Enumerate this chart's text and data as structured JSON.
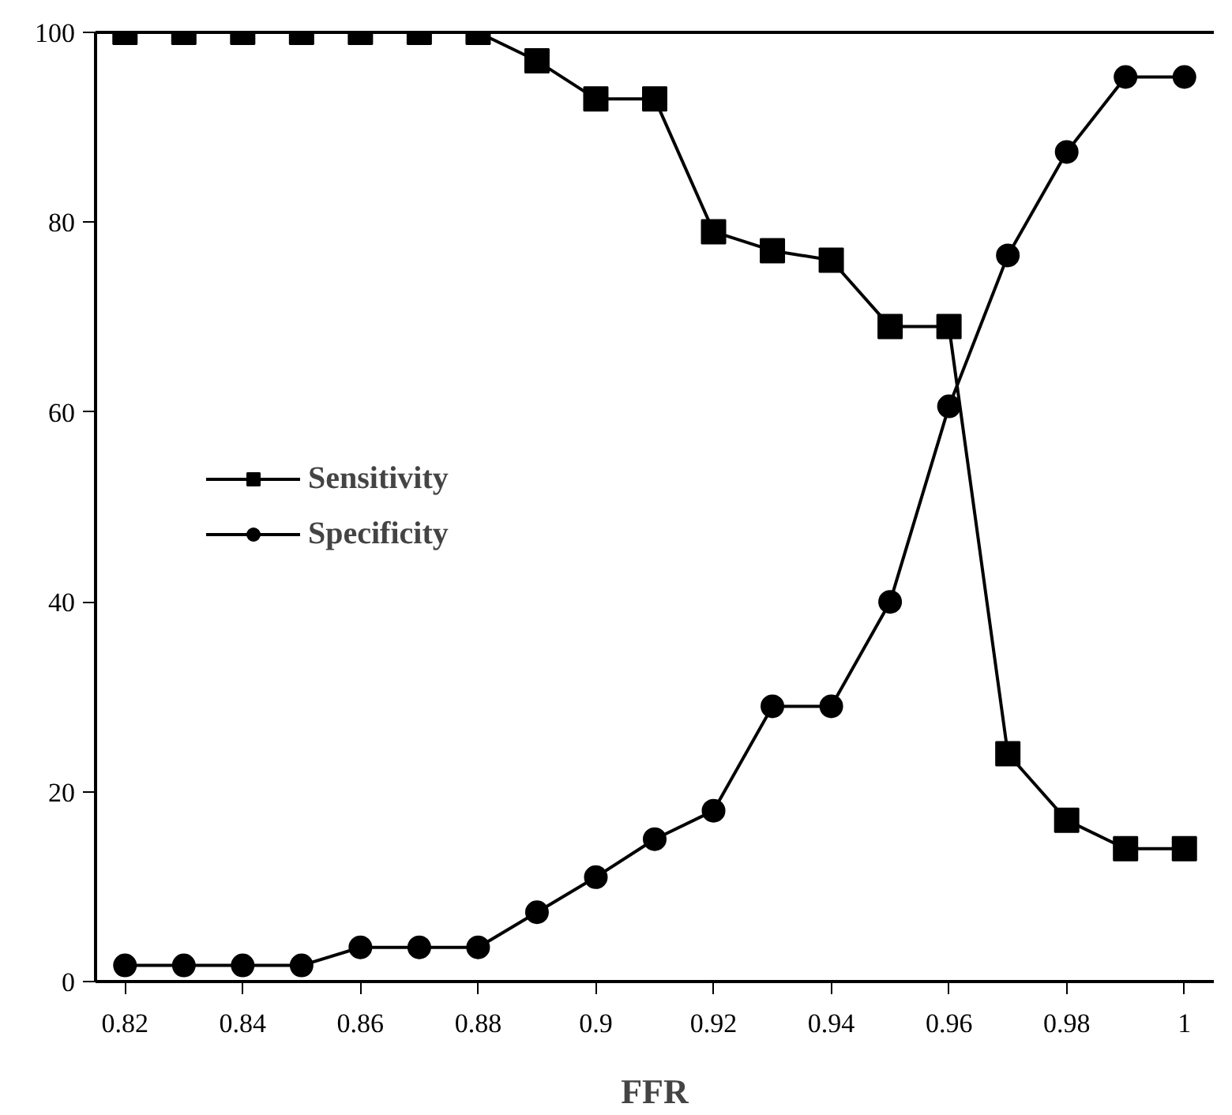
{
  "chart_data": {
    "type": "line",
    "xlabel": "FFR",
    "x": [
      0.82,
      0.83,
      0.84,
      0.85,
      0.86,
      0.87,
      0.88,
      0.89,
      0.9,
      0.91,
      0.92,
      0.93,
      0.94,
      0.95,
      0.96,
      0.97,
      0.98,
      0.99,
      1.0
    ],
    "series": [
      {
        "name": "Sensitivity",
        "color": "#000000",
        "marker": "square",
        "values": [
          100,
          100,
          100,
          100,
          100,
          100,
          100,
          97,
          93,
          93,
          79,
          77,
          76,
          69,
          69,
          24,
          17,
          14,
          14
        ]
      },
      {
        "name": "Specificity",
        "color": "#000000",
        "marker": "circle",
        "values": [
          1.7,
          1.7,
          1.7,
          1.7,
          3.6,
          3.6,
          3.6,
          7.3,
          11,
          15,
          18,
          29,
          29,
          40,
          60.6,
          76.5,
          87.4,
          95.3,
          95.3
        ]
      }
    ],
    "xlim": [
      0.815,
      1.005
    ],
    "xticks": [
      0.82,
      0.84,
      0.86,
      0.88,
      0.9,
      0.92,
      0.94,
      0.96,
      0.98,
      1
    ],
    "ylim": [
      0,
      100
    ],
    "yticks": [
      0,
      20,
      40,
      60,
      80,
      100
    ],
    "grid": false,
    "legend": "left",
    "line_style": "solid"
  }
}
